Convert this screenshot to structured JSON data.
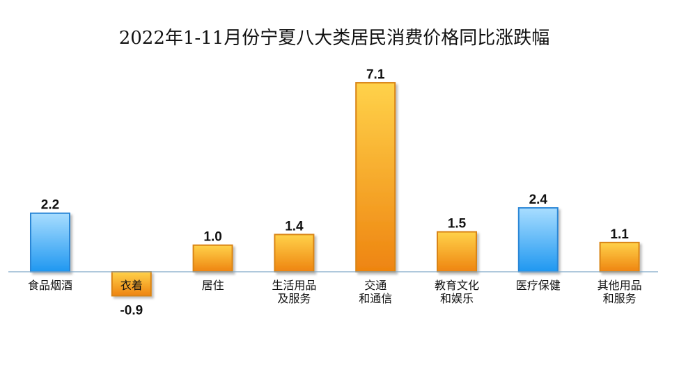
{
  "colors": {
    "blue_top": "#a8ddff",
    "blue_bottom": "#1f97f0",
    "blue_stroke": "#2a86d6",
    "orange_top": "#ffd24a",
    "orange_bottom": "#ee8410",
    "orange_stroke": "#d98412",
    "axis": "#7fa8c8"
  },
  "chart_data": {
    "type": "bar",
    "title": "2022年1-11月份宁夏八大类居民消费价格同比涨跌幅",
    "xlabel": "",
    "ylabel": "",
    "ylim": [
      -1.5,
      8.0
    ],
    "grid": false,
    "categories": [
      [
        "食品烟酒"
      ],
      [
        "衣着"
      ],
      [
        "居住"
      ],
      [
        "生活用品",
        "及服务"
      ],
      [
        "交通",
        "和通信"
      ],
      [
        "教育文化",
        "和娱乐"
      ],
      [
        "医疗保健"
      ],
      [
        "其他用品",
        "和服务"
      ]
    ],
    "values": [
      2.2,
      -0.9,
      1.0,
      1.4,
      7.1,
      1.5,
      2.4,
      1.1
    ],
    "value_labels": [
      "2.2",
      "-0.9",
      "1.0",
      "1.4",
      "7.1",
      "1.5",
      "2.4",
      "1.1"
    ],
    "bar_colors": [
      "blue",
      "orange",
      "orange",
      "orange",
      "orange",
      "orange",
      "blue",
      "orange"
    ]
  }
}
